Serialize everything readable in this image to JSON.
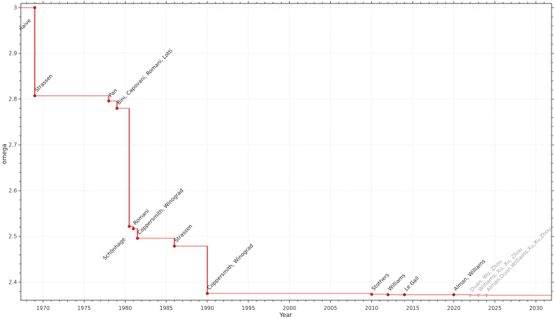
{
  "figure": {
    "background": "#ffffff",
    "frame_color": "#4d4d4d",
    "grid_color": "#dcdcdc"
  },
  "chart_data": {
    "type": "line",
    "subtype": "step-post",
    "title": "",
    "xlabel": "Year",
    "ylabel": "omega",
    "legend": "none",
    "grid": "dotted, major ticks, both axes",
    "xlim": [
      1967.3,
      2031.9
    ],
    "ylim": [
      2.3606,
      3.0091
    ],
    "x_major_ticks": [
      1970,
      1975,
      1980,
      1985,
      1990,
      1995,
      2000,
      2005,
      2010,
      2015,
      2020,
      2025,
      2030
    ],
    "x_minor_step": 1,
    "y_major_ticks": [
      {
        "value": 2.4,
        "label": "2.4"
      },
      {
        "value": 2.5,
        "label": "2.5"
      },
      {
        "value": 2.6,
        "label": "2.6"
      },
      {
        "value": 2.7,
        "label": "2.7"
      },
      {
        "value": 2.8,
        "label": "2.8"
      },
      {
        "value": 2.9,
        "label": "2.9"
      },
      {
        "value": 3.0,
        "label": "3"
      }
    ],
    "y_minor_step": 0.02,
    "line_color": "#efa09c",
    "step_edge_color": "#e04040",
    "marker_color": "#c81e1e",
    "muted_marker_color": "#f2a2a2",
    "annotation_color": "#1b1b1b",
    "muted_annotation_color": "#9f9f9f",
    "points": [
      {
        "label": "naive",
        "year": 1969,
        "omega": 3.0,
        "side": "below",
        "muted": false
      },
      {
        "label": "Strassen",
        "year": 1969,
        "omega": 2.8074,
        "side": "above",
        "muted": false
      },
      {
        "label": "Pan",
        "year": 1978,
        "omega": 2.796,
        "side": "above",
        "muted": false
      },
      {
        "label": "Bini, Capovani, Romani, Lotti",
        "year": 1979,
        "omega": 2.78,
        "side": "above",
        "muted": false
      },
      {
        "label": "Schönhage",
        "year": 1980.5,
        "omega": 2.522,
        "side": "below",
        "muted": false
      },
      {
        "label": "Romani",
        "year": 1981,
        "omega": 2.517,
        "side": "above",
        "muted": false
      },
      {
        "label": "Coppersmith, Winograd",
        "year": 1981.5,
        "omega": 2.496,
        "side": "above",
        "muted": false
      },
      {
        "label": "Strassen",
        "year": 1986,
        "omega": 2.479,
        "side": "above",
        "muted": false
      },
      {
        "label": "Coppersmith, Winograd",
        "year": 1990,
        "omega": 2.3755,
        "side": "above",
        "muted": false
      },
      {
        "label": "Stothers",
        "year": 2010,
        "omega": 2.3737,
        "side": "above",
        "muted": false
      },
      {
        "label": "Williams",
        "year": 2012,
        "omega": 2.3729,
        "side": "above",
        "muted": false
      },
      {
        "label": "Le Gall",
        "year": 2014,
        "omega": 2.3728639,
        "side": "above",
        "muted": false
      },
      {
        "label": "Alman, Williams",
        "year": 2020,
        "omega": 2.3728596,
        "side": "above",
        "muted": false
      },
      {
        "label": "Duan, Wu, Zhou",
        "year": 2022,
        "omega": 2.37188,
        "side": "above",
        "muted": true
      },
      {
        "label": "Williams, Xu, Xu, Zhou",
        "year": 2023,
        "omega": 2.371866,
        "side": "above",
        "muted": true
      },
      {
        "label": "Alman,Duan,Williams,Xu,Xu,Zhou",
        "year": 2024,
        "omega": 2.371552,
        "side": "above",
        "muted": true
      }
    ]
  }
}
